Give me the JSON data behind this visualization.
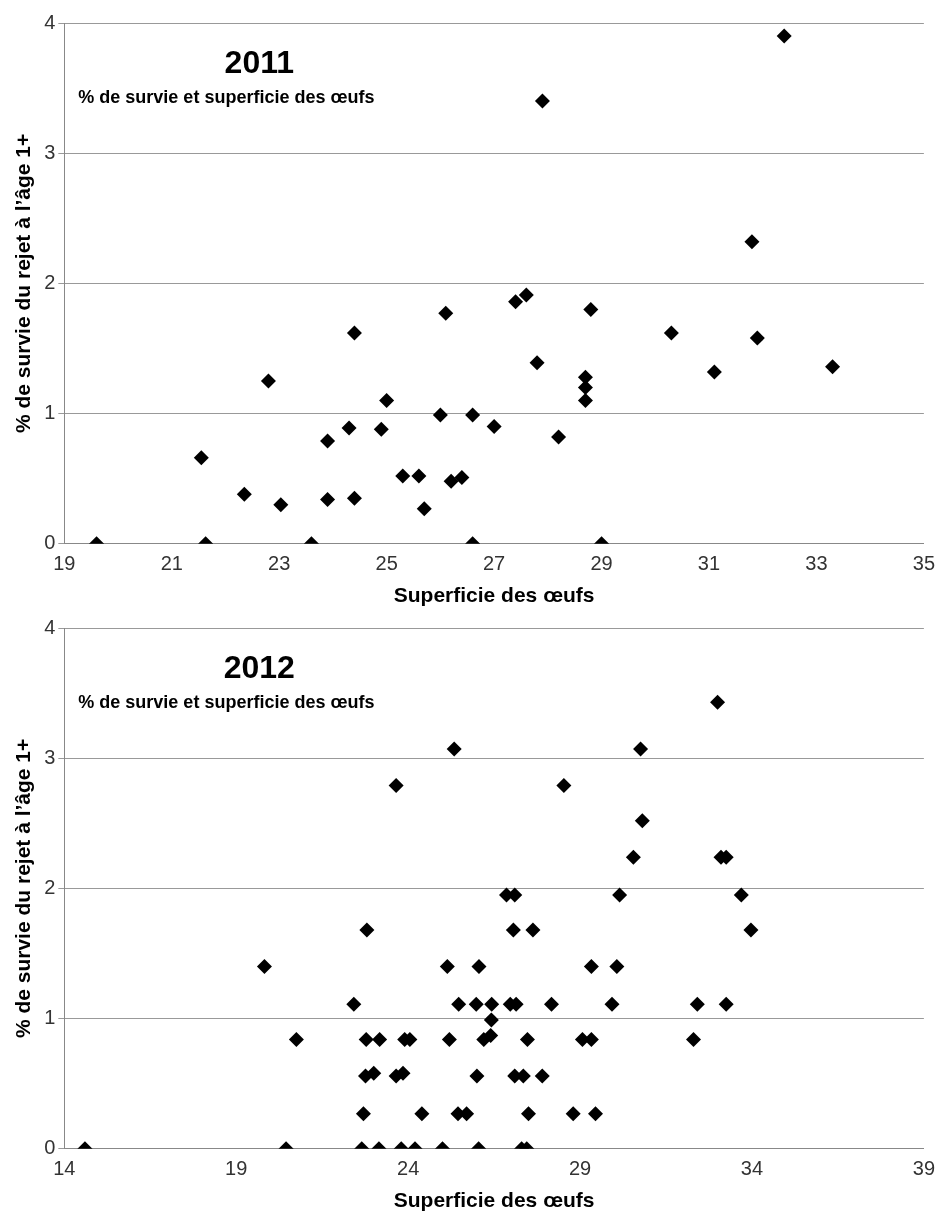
{
  "chart_data": [
    {
      "type": "scatter",
      "title": "2011",
      "subtitle": "% de survie et superficie des œufs",
      "xlabel": "Superficie des œufs",
      "ylabel": "% de survie du rejet à l’âge 1+",
      "marker": "diamond",
      "grid": "y",
      "xlim": [
        19,
        35
      ],
      "xticks": [
        19,
        21,
        23,
        25,
        27,
        29,
        31,
        33,
        35
      ],
      "ylim": [
        0,
        4
      ],
      "yticks": [
        0,
        1,
        2,
        3,
        4
      ],
      "series": [
        {
          "color": "#000000",
          "x": [
            19.6,
            21.63,
            23.6,
            26.6,
            29.0,
            21.55,
            22.35,
            23.03,
            22.8,
            23.9,
            23.9,
            24.3,
            24.4,
            24.4,
            24.9,
            25.0,
            25.3,
            25.6,
            25.7,
            26.0,
            26.1,
            26.2,
            26.4,
            26.6,
            27.0,
            27.4,
            27.6,
            27.9,
            27.8,
            28.2,
            28.7,
            28.7,
            28.7,
            28.8,
            30.3,
            31.1,
            31.8,
            31.9,
            32.4,
            33.3
          ],
          "values": [
            0,
            0,
            0,
            0,
            0,
            0.66,
            0.38,
            0.3,
            1.25,
            0.79,
            0.34,
            0.89,
            0.35,
            1.62,
            0.88,
            1.1,
            0.52,
            0.52,
            0.27,
            0.99,
            1.77,
            0.48,
            0.51,
            0.99,
            0.9,
            1.86,
            1.91,
            3.4,
            1.39,
            0.82,
            1.28,
            1.2,
            1.1,
            1.8,
            1.62,
            1.32,
            2.32,
            1.58,
            3.9,
            1.36
          ]
        }
      ]
    },
    {
      "type": "scatter",
      "title": "2012",
      "subtitle": "% de survie et superficie des œufs",
      "xlabel": "Superficie des œufs",
      "ylabel": "% de survie du rejet à l’âge 1+",
      "marker": "diamond",
      "grid": "y",
      "xlim": [
        14,
        39
      ],
      "xticks": [
        14,
        19,
        24,
        29,
        34,
        39
      ],
      "ylim": [
        0,
        4
      ],
      "yticks": [
        0,
        1,
        2,
        3,
        4
      ],
      "series": [
        {
          "color": "#000000",
          "x": [
            14.6,
            20.45,
            22.65,
            23.15,
            23.8,
            24.2,
            25.0,
            26.05,
            27.3,
            27.45,
            22.7,
            24.4,
            25.45,
            25.7,
            27.5,
            28.8,
            29.45,
            22.76,
            23.0,
            23.65,
            23.85,
            26.0,
            27.1,
            27.35,
            27.9,
            20.75,
            22.78,
            23.17,
            23.9,
            24.05,
            25.2,
            26.2,
            26.4,
            27.47,
            29.07,
            29.33,
            32.3,
            26.42,
            22.42,
            25.47,
            25.98,
            26.43,
            26.97,
            27.14,
            28.17,
            29.93,
            32.41,
            33.25,
            19.82,
            25.14,
            26.06,
            29.33,
            30.07,
            22.8,
            27.06,
            27.63,
            33.97,
            26.86,
            27.1,
            30.15,
            33.69,
            30.55,
            33.1,
            33.25,
            30.81,
            23.65,
            28.53,
            25.34,
            30.76,
            33.0
          ],
          "values": [
            0,
            0,
            0,
            0,
            0,
            0,
            0,
            0,
            0,
            0,
            0.27,
            0.27,
            0.27,
            0.27,
            0.27,
            0.27,
            0.27,
            0.56,
            0.58,
            0.56,
            0.58,
            0.56,
            0.56,
            0.56,
            0.56,
            0.84,
            0.84,
            0.84,
            0.84,
            0.84,
            0.84,
            0.84,
            0.87,
            0.84,
            0.84,
            0.84,
            0.84,
            0.99,
            1.11,
            1.11,
            1.11,
            1.11,
            1.11,
            1.11,
            1.11,
            1.11,
            1.11,
            1.11,
            1.4,
            1.4,
            1.4,
            1.4,
            1.4,
            1.68,
            1.68,
            1.68,
            1.68,
            1.95,
            1.95,
            1.95,
            1.95,
            2.24,
            2.24,
            2.24,
            2.52,
            2.79,
            2.79,
            3.07,
            3.07,
            3.43
          ]
        }
      ]
    }
  ]
}
